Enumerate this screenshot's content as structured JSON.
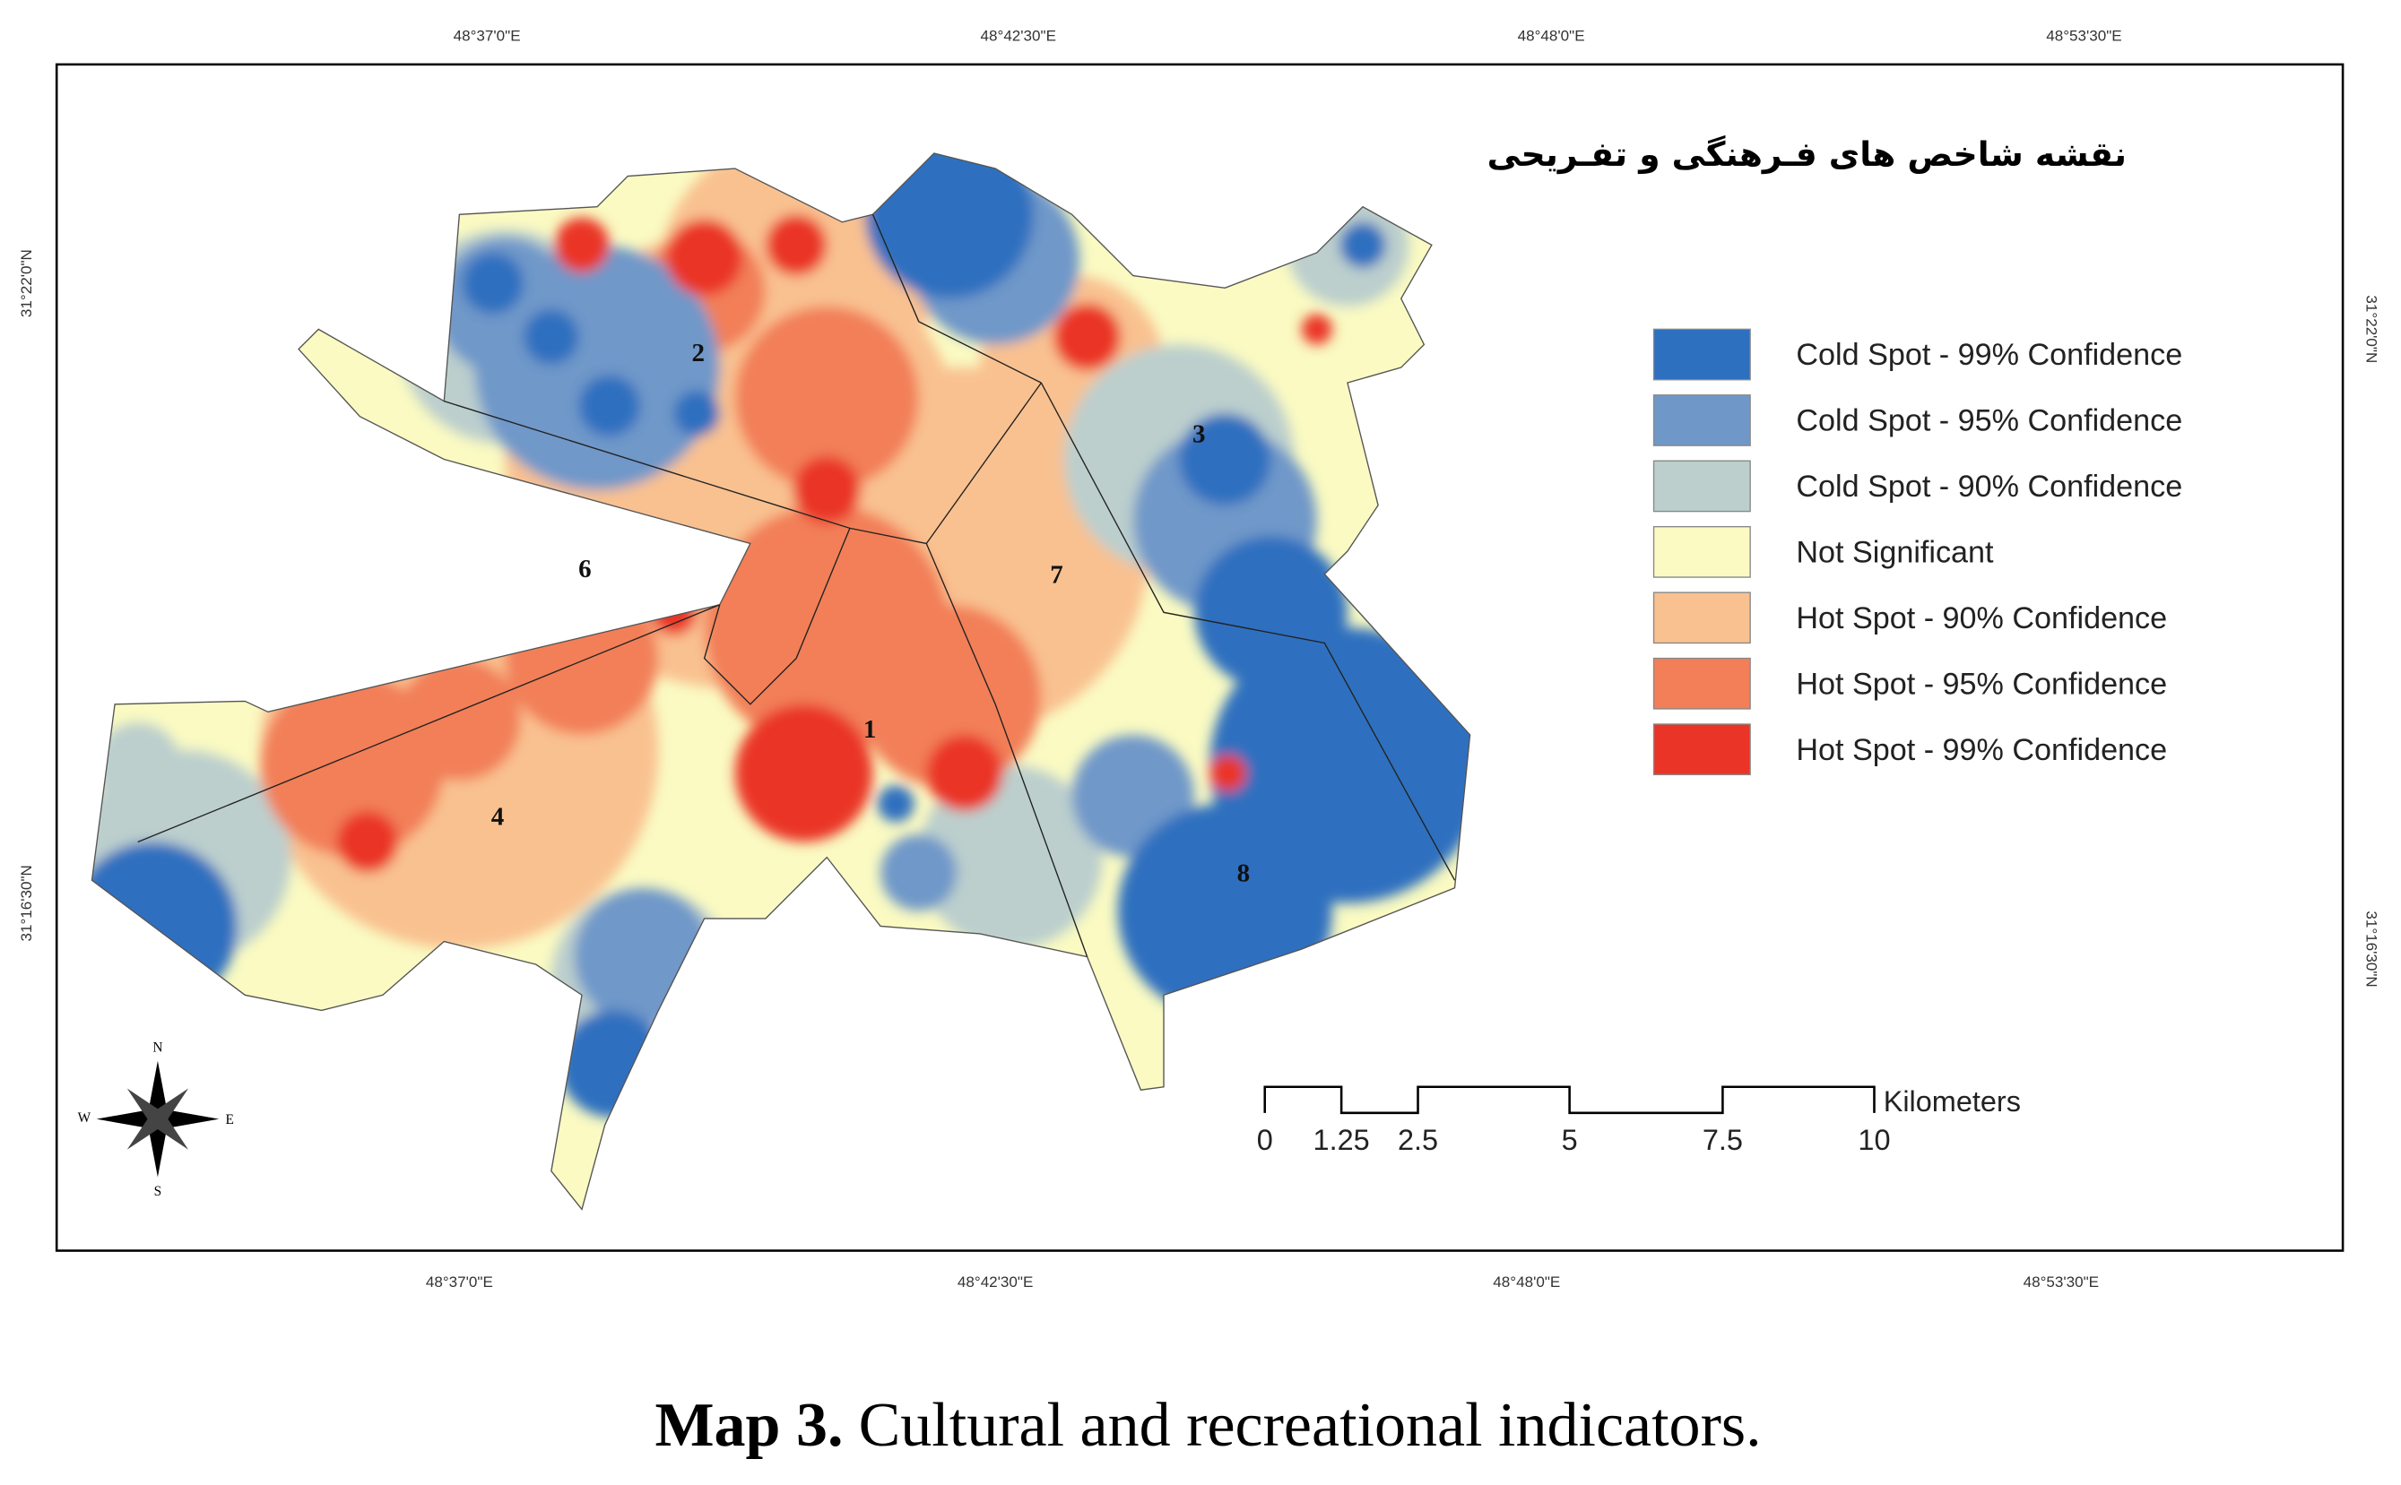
{
  "map": {
    "title": "نقشه شاخص های فـرهنگی و تفـریحی",
    "top_labels": [
      "48°37'0\"E",
      "48°42'30\"E",
      "48°48'0\"E",
      "48°53'30\"E"
    ],
    "bottom_labels": [
      "48°37'0\"E",
      "48°42'30\"E",
      "48°48'0\"E",
      "48°53'30\"E"
    ],
    "left_labels": [
      "31°22'0\"N",
      "31°16'30\"N"
    ],
    "right_labels": [
      "31°22'0\"N",
      "31°16'30\"N"
    ],
    "legend": [
      {
        "label": "Cold Spot - 99% Confidence",
        "color": "#2d70bf"
      },
      {
        "label": "Cold Spot - 95% Confidence",
        "color": "#6f98c9"
      },
      {
        "label": "Cold Spot - 90% Confidence",
        "color": "#bccfcd"
      },
      {
        "label": "Not Significant",
        "color": "#fafac2"
      },
      {
        "label": "Hot Spot - 90% Confidence",
        "color": "#f9c190"
      },
      {
        "label": "Hot Spot - 95% Confidence",
        "color": "#f27f58"
      },
      {
        "label": "Hot Spot - 99% Confidence",
        "color": "#ea3427"
      }
    ],
    "districts": [
      "1",
      "2",
      "3",
      "4",
      "6",
      "7",
      "8"
    ],
    "scale_bar": {
      "ticks": [
        "0",
        "1.25",
        "2.5",
        "5",
        "7.5",
        "10"
      ],
      "unit": "Kilometers"
    },
    "compass": {
      "north": "N",
      "south": "S",
      "east": "E",
      "west": "W"
    }
  },
  "caption": {
    "label": "Map 3.",
    "text": "Cultural and recreational indicators."
  }
}
